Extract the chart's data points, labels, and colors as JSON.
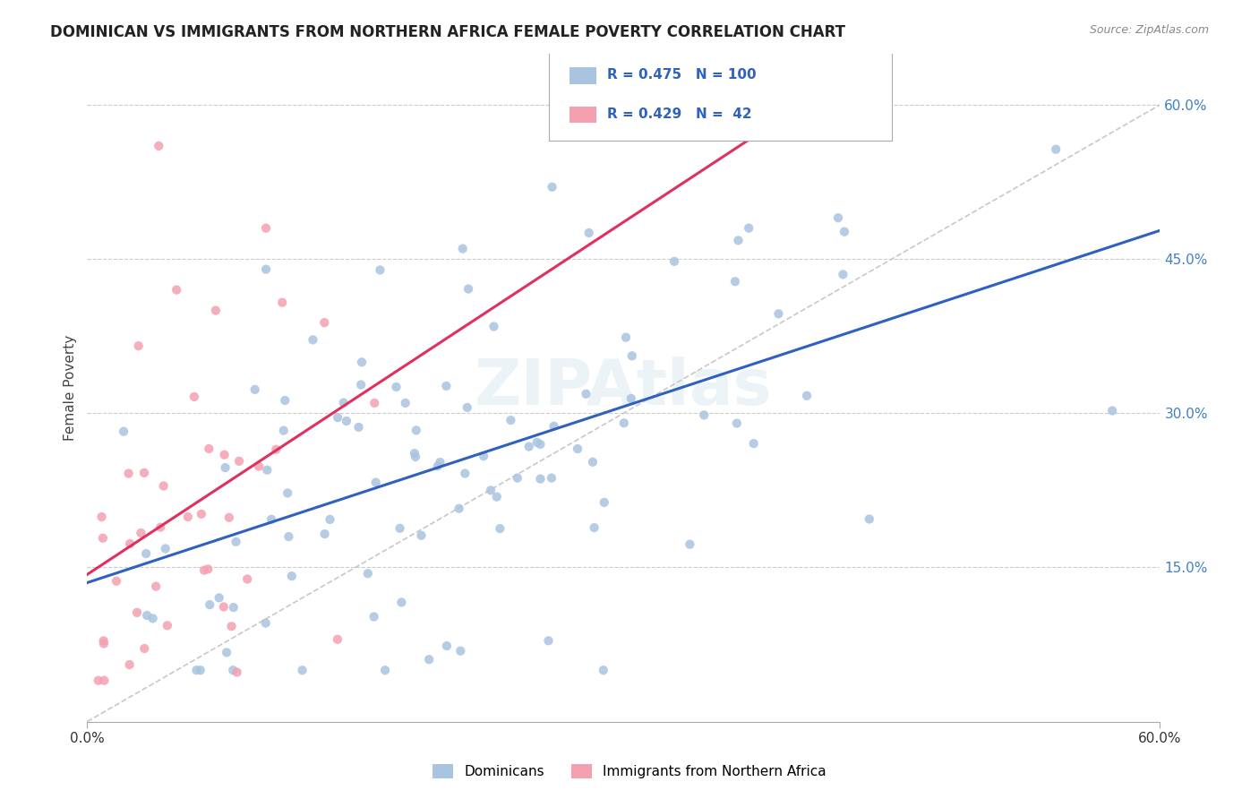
{
  "title": "DOMINICAN VS IMMIGRANTS FROM NORTHERN AFRICA FEMALE POVERTY CORRELATION CHART",
  "source": "Source: ZipAtlas.com",
  "ylabel": "Female Poverty",
  "right_yticks": [
    "15.0%",
    "30.0%",
    "45.0%",
    "60.0%"
  ],
  "right_ytick_vals": [
    0.15,
    0.3,
    0.45,
    0.6
  ],
  "xmin": 0.0,
  "xmax": 0.6,
  "ymin": 0.0,
  "ymax": 0.65,
  "legend_r1_val": "0.475",
  "legend_n1_val": "100",
  "legend_r2_val": "0.429",
  "legend_n2_val": "42",
  "color_dominican": "#a8c4e0",
  "color_nafrica": "#f4a0b0",
  "color_line_dominican": "#3060c0",
  "color_line_nafrica": "#e03060",
  "color_diagonal": "#c8c8c8",
  "watermark": "ZIPAtlas",
  "bottom_legend_1": "Dominicans",
  "bottom_legend_2": "Immigrants from Northern Africa"
}
